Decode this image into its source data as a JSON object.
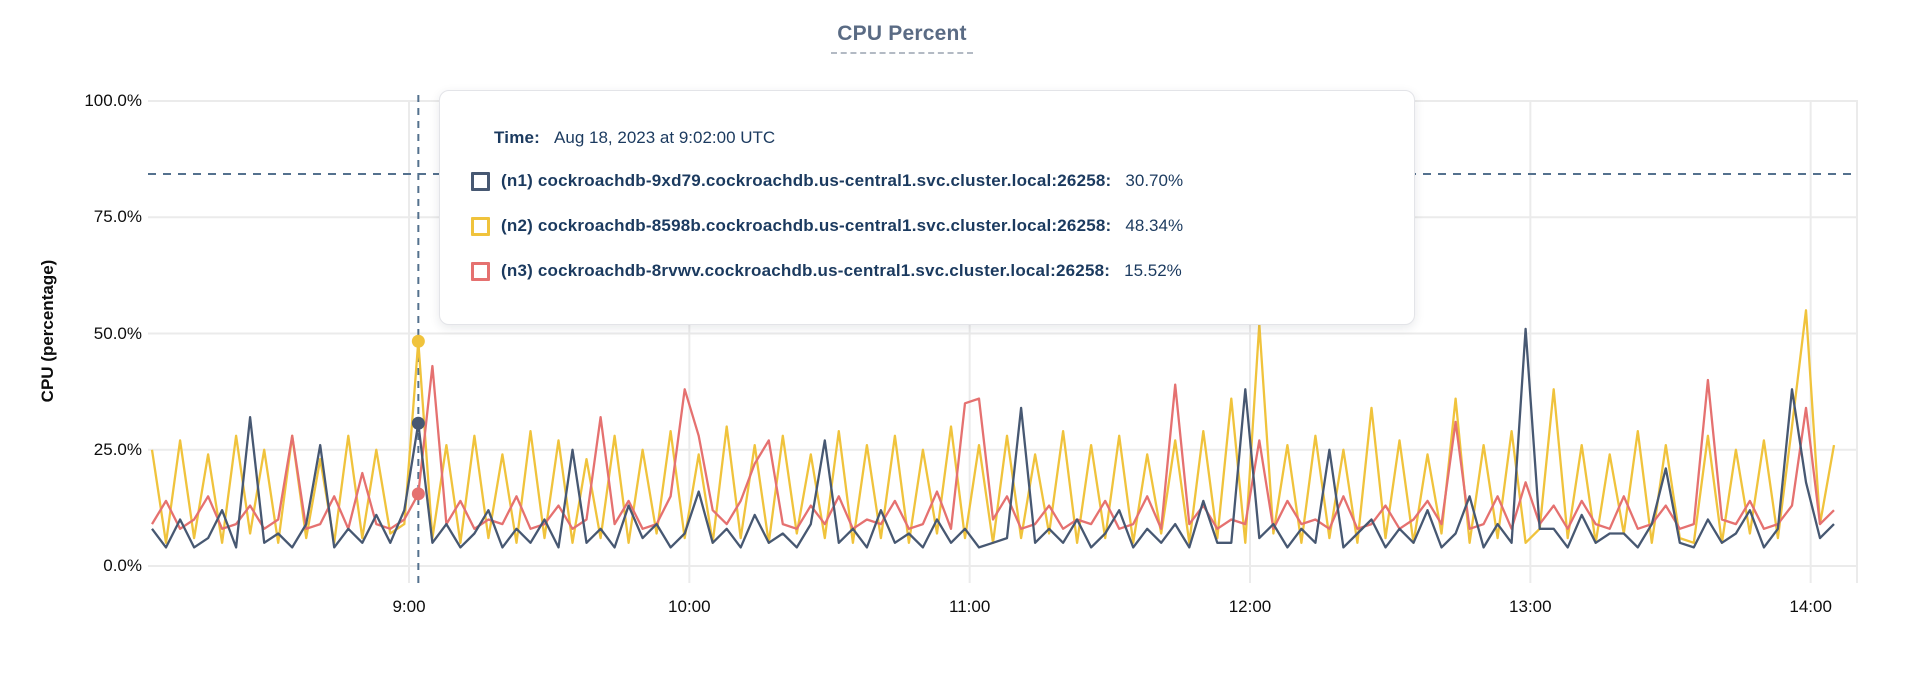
{
  "title": "CPU Percent",
  "y_axis_title": "CPU (percentage)",
  "tooltip": {
    "time_label": "Time:",
    "time_value": "Aug 18, 2023 at 9:02:00 UTC",
    "rows": [
      {
        "name": "(n1) cockroachdb-9xd79.cockroachdb.us-central1.svc.cluster.local:26258:",
        "value": "30.70%",
        "color": "#475872"
      },
      {
        "name": "(n2) cockroachdb-8598b.cockroachdb.us-central1.svc.cluster.local:26258:",
        "value": "48.34%",
        "color": "#f0c33c"
      },
      {
        "name": "(n3) cockroachdb-8rvwv.cockroachdb.us-central1.svc.cluster.local:26258:",
        "value": "15.52%",
        "color": "#e57170"
      }
    ]
  },
  "colors": {
    "grid": "#ebebeb",
    "dashed_guides": "#54718e",
    "axis_text": "#0d0d0d",
    "tooltip_text": "#1b3a5f",
    "title_text": "#5a6b84"
  },
  "chart_data": {
    "type": "line",
    "title": "CPU Percent",
    "xlabel": "",
    "ylabel": "CPU (percentage)",
    "ylim": [
      0,
      100
    ],
    "grid": true,
    "legend_position": "tooltip-overlay",
    "y_ticks": [
      {
        "label": "100.0%",
        "pct": 100
      },
      {
        "label": "75.0%",
        "pct": 75
      },
      {
        "label": "50.0%",
        "pct": 50
      },
      {
        "label": "25.0%",
        "pct": 25
      },
      {
        "label": "0.0%",
        "pct": 0
      }
    ],
    "x_ticks": [
      {
        "label": "9:00",
        "minute": 540
      },
      {
        "label": "10:00",
        "minute": 600
      },
      {
        "label": "11:00",
        "minute": 660
      },
      {
        "label": "12:00",
        "minute": 720
      },
      {
        "label": "13:00",
        "minute": 780
      },
      {
        "label": "14:00",
        "minute": 840
      }
    ],
    "x_start_minute": 485,
    "x_step_minutes": 3,
    "threshold_pct": 84.3,
    "hover": {
      "minute": 542,
      "time_text": "Aug 18, 2023 at 9:02:00 UTC",
      "values": [
        30.7,
        48.34,
        15.52
      ]
    },
    "series": [
      {
        "name": "(n1) cockroachdb-9xd79.cockroachdb.us-central1.svc.cluster.local:26258",
        "color": "#475872",
        "values": [
          8,
          4,
          10,
          4,
          6,
          12,
          4,
          32,
          5,
          7,
          4,
          9,
          26,
          4,
          8,
          5,
          11,
          5,
          12,
          30.7,
          5,
          9,
          4,
          7,
          12,
          4,
          8,
          5,
          10,
          4,
          25,
          5,
          8,
          4,
          13,
          6,
          9,
          4,
          7,
          16,
          5,
          8,
          4,
          11,
          5,
          7,
          4,
          9,
          27,
          5,
          8,
          4,
          12,
          5,
          7,
          4,
          10,
          5,
          8,
          4,
          5,
          6,
          34,
          5,
          8,
          5,
          10,
          4,
          7,
          12,
          4,
          8,
          5,
          9,
          4,
          14,
          5,
          5,
          38,
          6,
          9,
          4,
          8,
          5,
          25,
          4,
          7,
          10,
          4,
          8,
          5,
          12,
          4,
          7,
          15,
          4,
          9,
          5,
          51,
          8,
          8,
          4,
          11,
          5,
          7,
          7,
          4,
          9,
          21,
          5,
          4,
          10,
          5,
          7,
          12,
          4,
          8,
          38,
          18,
          6,
          9
        ]
      },
      {
        "name": "(n2) cockroachdb-8598b.cockroachdb.us-central1.svc.cluster.local:26258",
        "color": "#f0c33c",
        "values": [
          25,
          5,
          27,
          6,
          24,
          5,
          28,
          7,
          25,
          5,
          28,
          6,
          23,
          5,
          28,
          6,
          25,
          7,
          9,
          48.3,
          6,
          26,
          5,
          28,
          6,
          24,
          5,
          29,
          6,
          27,
          5,
          23,
          6,
          28,
          5,
          25,
          7,
          29,
          6,
          24,
          5,
          30,
          6,
          26,
          5,
          28,
          7,
          24,
          6,
          29,
          5,
          26,
          6,
          28,
          5,
          25,
          7,
          30,
          6,
          26,
          5,
          28,
          6,
          24,
          7,
          29,
          5,
          26,
          6,
          28,
          5,
          24,
          7,
          27,
          5,
          29,
          6,
          36,
          5,
          52,
          7,
          26,
          5,
          28,
          6,
          25,
          5,
          34,
          6,
          27,
          5,
          24,
          7,
          36,
          5,
          26,
          6,
          29,
          5,
          8,
          38,
          6,
          26,
          5,
          24,
          7,
          29,
          5,
          26,
          6,
          5,
          28,
          5,
          25,
          7,
          27,
          6,
          30,
          55,
          9,
          26
        ]
      },
      {
        "name": "(n3) cockroachdb-8rvwv.cockroachdb.us-central1.svc.cluster.local:26258",
        "color": "#e57170",
        "values": [
          9,
          14,
          8,
          10,
          15,
          8,
          9,
          13,
          8,
          10,
          28,
          8,
          9,
          15,
          8,
          20,
          9,
          8,
          10,
          15.5,
          43,
          9,
          14,
          8,
          10,
          9,
          15,
          8,
          9,
          13,
          8,
          10,
          32,
          9,
          14,
          8,
          9,
          15,
          38,
          28,
          12,
          9,
          14,
          22,
          27,
          9,
          8,
          13,
          9,
          15,
          8,
          10,
          9,
          14,
          8,
          9,
          16,
          8,
          35,
          36,
          10,
          15,
          8,
          9,
          13,
          8,
          10,
          9,
          14,
          8,
          9,
          15,
          8,
          39,
          9,
          13,
          8,
          10,
          9,
          27,
          8,
          14,
          9,
          10,
          8,
          15,
          8,
          9,
          13,
          8,
          10,
          14,
          9,
          31,
          8,
          9,
          15,
          8,
          18,
          9,
          13,
          8,
          14,
          9,
          8,
          15,
          8,
          9,
          13,
          8,
          9,
          40,
          10,
          9,
          14,
          8,
          9,
          13,
          34,
          9,
          12
        ]
      }
    ]
  }
}
